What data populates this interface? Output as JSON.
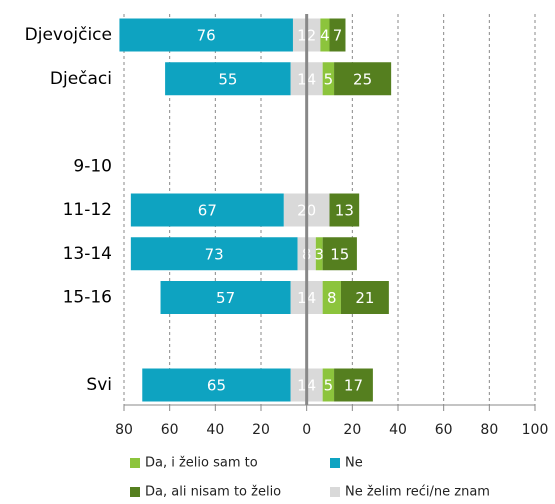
{
  "chart_data": {
    "type": "diverging-bar",
    "categories": [
      "Djevojčice",
      "Dječaci",
      null,
      "9-10",
      "11-12",
      "13-14",
      "15-16",
      null,
      "Svi"
    ],
    "series": [
      {
        "name": "Ne",
        "color": "#0ea3c1",
        "values": [
          76,
          55,
          null,
          null,
          67,
          73,
          57,
          null,
          65
        ]
      },
      {
        "name": "Ne želim reći/ne znam",
        "color": "#d9d9d9",
        "values": [
          12,
          14,
          null,
          null,
          20,
          8,
          14,
          null,
          14
        ]
      },
      {
        "name": "Da, i želio sam to",
        "color": "#8cc43c",
        "values": [
          4,
          5,
          null,
          null,
          null,
          3,
          8,
          null,
          5
        ]
      },
      {
        "name": "Da, ali nisam to želio",
        "color": "#557f1f",
        "values": [
          7,
          25,
          null,
          null,
          13,
          15,
          21,
          null,
          17
        ]
      }
    ],
    "xlim": [
      -80,
      100
    ],
    "xticks": [
      {
        "value": -80,
        "label": "80"
      },
      {
        "value": -60,
        "label": "60"
      },
      {
        "value": -40,
        "label": "40"
      },
      {
        "value": -20,
        "label": "20"
      },
      0,
      20,
      40,
      60,
      80,
      100
    ],
    "grid": true
  }
}
